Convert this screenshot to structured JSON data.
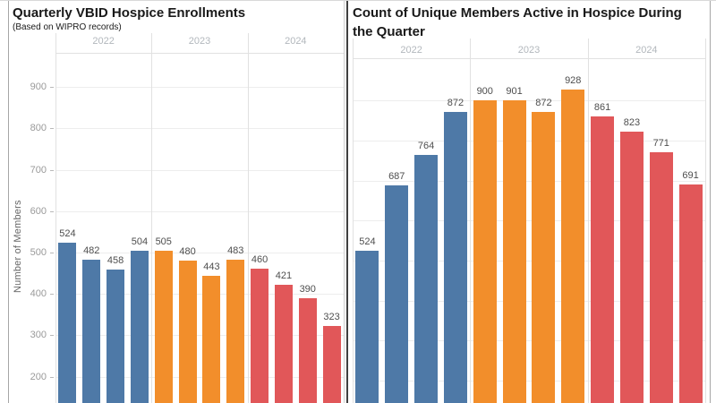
{
  "palette": {
    "y2022": "#4e79a7",
    "y2023": "#f28e2b",
    "y2024": "#e15759"
  },
  "chart_data": [
    {
      "type": "bar",
      "title": "Quarterly VBID Hospice Enrollments",
      "subtitle": "(Based on WIPRO records)",
      "ylabel": "Number of Members",
      "ylim": [
        200,
        960
      ],
      "yticks": [
        200,
        300,
        400,
        500,
        600,
        700,
        800,
        900
      ],
      "grid": true,
      "legend_position": "none",
      "groups": [
        {
          "label": "2022",
          "color": "#4e79a7",
          "values": [
            524,
            482,
            458,
            504
          ]
        },
        {
          "label": "2023",
          "color": "#f28e2b",
          "values": [
            505,
            480,
            443,
            483
          ]
        },
        {
          "label": "2024",
          "color": "#e15759",
          "values": [
            460,
            421,
            390,
            323
          ]
        }
      ]
    },
    {
      "type": "bar",
      "title": "Count of Unique Members Active in Hospice During the Quarter",
      "subtitle": "",
      "ylabel": "",
      "ylim": [
        200,
        1010
      ],
      "yticks": [
        200,
        300,
        400,
        500,
        600,
        700,
        800,
        900
      ],
      "grid": true,
      "legend_position": "none",
      "groups": [
        {
          "label": "2022",
          "color": "#4e79a7",
          "values": [
            524,
            687,
            764,
            872
          ]
        },
        {
          "label": "2023",
          "color": "#f28e2b",
          "values": [
            900,
            901,
            872,
            928
          ]
        },
        {
          "label": "2024",
          "color": "#e15759",
          "values": [
            861,
            823,
            771,
            691
          ]
        }
      ]
    }
  ]
}
